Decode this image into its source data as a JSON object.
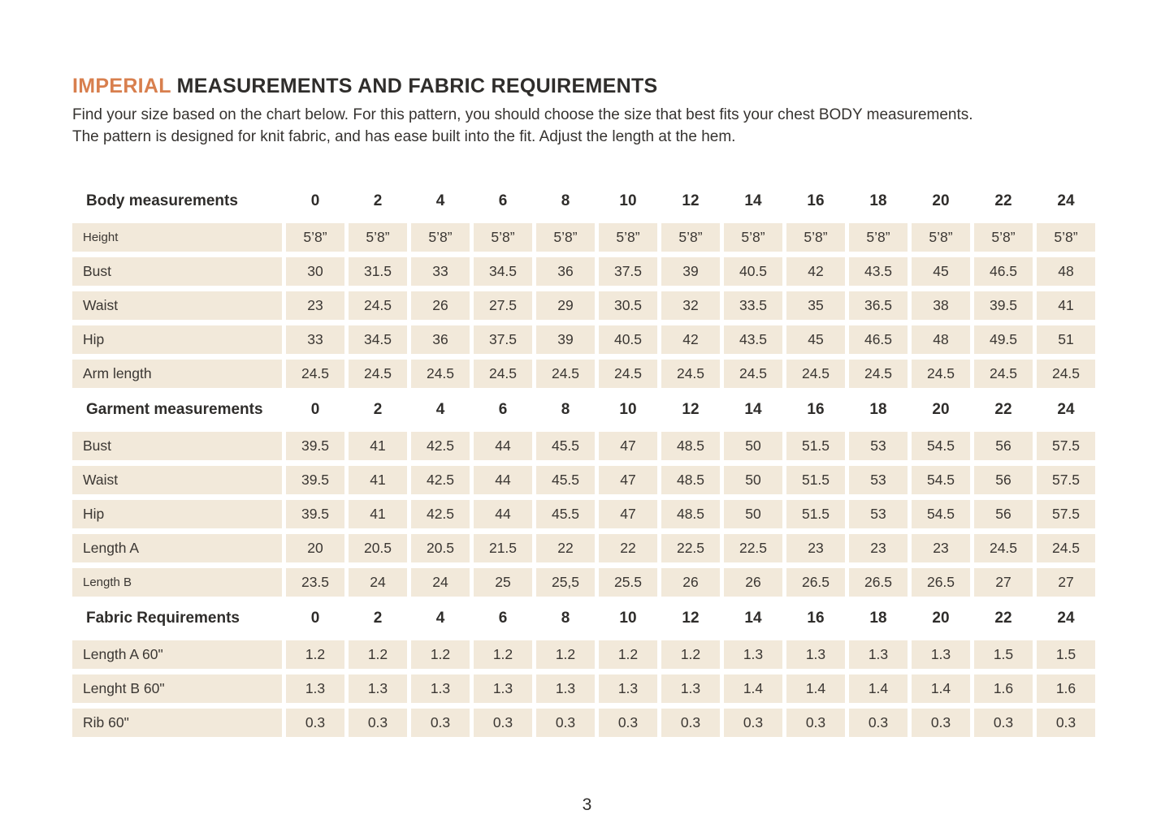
{
  "header": {
    "title_accent": "IMPERIAL",
    "title_rest": " MEASUREMENTS AND FABRIC REQUIREMENTS",
    "intro_line1": "Find your size based on the chart below. For this pattern, you should choose the size that best fits your chest BODY measurements.",
    "intro_line2": "The pattern is designed for knit fabric, and has ease built into the fit. Adjust the length at the hem."
  },
  "colors": {
    "accent_orange": "#d87f4e",
    "cell_background": "#f2e9da",
    "text_dark": "#2f2d2b"
  },
  "chart_data": {
    "type": "table",
    "sizes": [
      "0",
      "2",
      "4",
      "6",
      "8",
      "10",
      "12",
      "14",
      "16",
      "18",
      "20",
      "22",
      "24"
    ],
    "sections": [
      {
        "header": "Body measurements",
        "rows": [
          {
            "label": "Height",
            "small": true,
            "values": [
              "5’8”",
              "5’8”",
              "5’8”",
              "5’8”",
              "5’8”",
              "5’8”",
              "5’8”",
              "5’8”",
              "5’8”",
              "5’8”",
              "5’8”",
              "5’8”",
              "5’8”"
            ]
          },
          {
            "label": "Bust",
            "values": [
              "30",
              "31.5",
              "33",
              "34.5",
              "36",
              "37.5",
              "39",
              "40.5",
              "42",
              "43.5",
              "45",
              "46.5",
              "48"
            ]
          },
          {
            "label": "Waist",
            "values": [
              "23",
              "24.5",
              "26",
              "27.5",
              "29",
              "30.5",
              "32",
              "33.5",
              "35",
              "36.5",
              "38",
              "39.5",
              "41"
            ]
          },
          {
            "label": "Hip",
            "values": [
              "33",
              "34.5",
              "36",
              "37.5",
              "39",
              "40.5",
              "42",
              "43.5",
              "45",
              "46.5",
              "48",
              "49.5",
              "51"
            ]
          },
          {
            "label": "Arm length",
            "values": [
              "24.5",
              "24.5",
              "24.5",
              "24.5",
              "24.5",
              "24.5",
              "24.5",
              "24.5",
              "24.5",
              "24.5",
              "24.5",
              "24.5",
              "24.5"
            ]
          }
        ]
      },
      {
        "header": "Garment measurements",
        "rows": [
          {
            "label": "Bust",
            "values": [
              "39.5",
              "41",
              "42.5",
              "44",
              "45.5",
              "47",
              "48.5",
              "50",
              "51.5",
              "53",
              "54.5",
              "56",
              "57.5"
            ]
          },
          {
            "label": "Waist",
            "values": [
              "39.5",
              "41",
              "42.5",
              "44",
              "45.5",
              "47",
              "48.5",
              "50",
              "51.5",
              "53",
              "54.5",
              "56",
              "57.5"
            ]
          },
          {
            "label": "Hip",
            "values": [
              "39.5",
              "41",
              "42.5",
              "44",
              "45.5",
              "47",
              "48.5",
              "50",
              "51.5",
              "53",
              "54.5",
              "56",
              "57.5"
            ]
          },
          {
            "label": "Length A",
            "values": [
              "20",
              "20.5",
              "20.5",
              "21.5",
              "22",
              "22",
              "22.5",
              "22.5",
              "23",
              "23",
              "23",
              "24.5",
              "24.5"
            ]
          },
          {
            "label": "Length B",
            "small": true,
            "values": [
              "23.5",
              "24",
              "24",
              "25",
              "25,5",
              "25.5",
              "26",
              "26",
              "26.5",
              "26.5",
              "26.5",
              "27",
              "27"
            ]
          }
        ]
      },
      {
        "header": "Fabric Requirements",
        "rows": [
          {
            "label": "Length A 60\"",
            "values": [
              "1.2",
              "1.2",
              "1.2",
              "1.2",
              "1.2",
              "1.2",
              "1.2",
              "1.3",
              "1.3",
              "1.3",
              "1.3",
              "1.5",
              "1.5"
            ]
          },
          {
            "label": "Lenght B 60\"",
            "values": [
              "1.3",
              "1.3",
              "1.3",
              "1.3",
              "1.3",
              "1.3",
              "1.3",
              "1.4",
              "1.4",
              "1.4",
              "1.4",
              "1.6",
              "1.6"
            ]
          },
          {
            "label": "Rib 60\"",
            "values": [
              "0.3",
              "0.3",
              "0.3",
              "0.3",
              "0.3",
              "0.3",
              "0.3",
              "0.3",
              "0.3",
              "0.3",
              "0.3",
              "0.3",
              "0.3"
            ]
          }
        ]
      }
    ]
  },
  "footer": {
    "page_number": "3"
  }
}
